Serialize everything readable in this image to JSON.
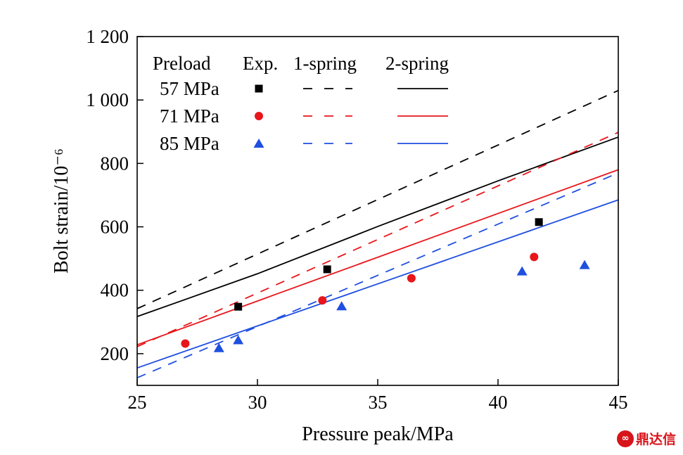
{
  "chart_data": {
    "type": "scatter",
    "xlabel": "Pressure peak/MPa",
    "ylabel": "Bolt strain/10⁻⁶",
    "xlim": [
      25,
      45
    ],
    "ylim": [
      100,
      1200
    ],
    "x_ticks": [
      25,
      30,
      35,
      40,
      45
    ],
    "y_ticks": [
      200,
      400,
      600,
      800,
      1000,
      1200
    ],
    "y_tick_labels": [
      "200",
      "400",
      "600",
      "800",
      "1 000",
      "1 200"
    ],
    "grid": false,
    "legend": {
      "placement": "top-left",
      "headers": [
        "Preload",
        "Exp.",
        "1-spring",
        "2-spring"
      ]
    },
    "series": [
      {
        "name": "57 MPa",
        "color": "#000000",
        "marker": "square",
        "exp": {
          "x": [
            29.2,
            32.9,
            41.7
          ],
          "y": [
            348,
            466,
            615
          ]
        },
        "one_spring": {
          "x": [
            25,
            45
          ],
          "y": [
            342,
            1030
          ]
        },
        "two_spring": {
          "x": [
            25,
            30,
            35,
            40,
            45
          ],
          "y": [
            317,
            452,
            601,
            745,
            883
          ]
        }
      },
      {
        "name": "71 MPa",
        "color": "#e8161b",
        "marker": "circle",
        "exp": {
          "x": [
            27.0,
            32.7,
            36.4,
            41.5
          ],
          "y": [
            232,
            368,
            438,
            505
          ]
        },
        "one_spring": {
          "x": [
            25,
            45
          ],
          "y": [
            222,
            898
          ]
        },
        "two_spring": {
          "x": [
            25,
            45
          ],
          "y": [
            228,
            780
          ]
        }
      },
      {
        "name": "85 MPa",
        "color": "#1f4fe0",
        "marker": "triangle",
        "exp": {
          "x": [
            28.4,
            29.2,
            33.5,
            41.0,
            43.6
          ],
          "y": [
            218,
            243,
            350,
            460,
            480
          ]
        },
        "one_spring": {
          "x": [
            25,
            45
          ],
          "y": [
            124,
            770
          ]
        },
        "two_spring": {
          "x": [
            25,
            45
          ],
          "y": [
            155,
            685
          ]
        }
      }
    ]
  },
  "watermark": {
    "text": "鼎达信"
  }
}
